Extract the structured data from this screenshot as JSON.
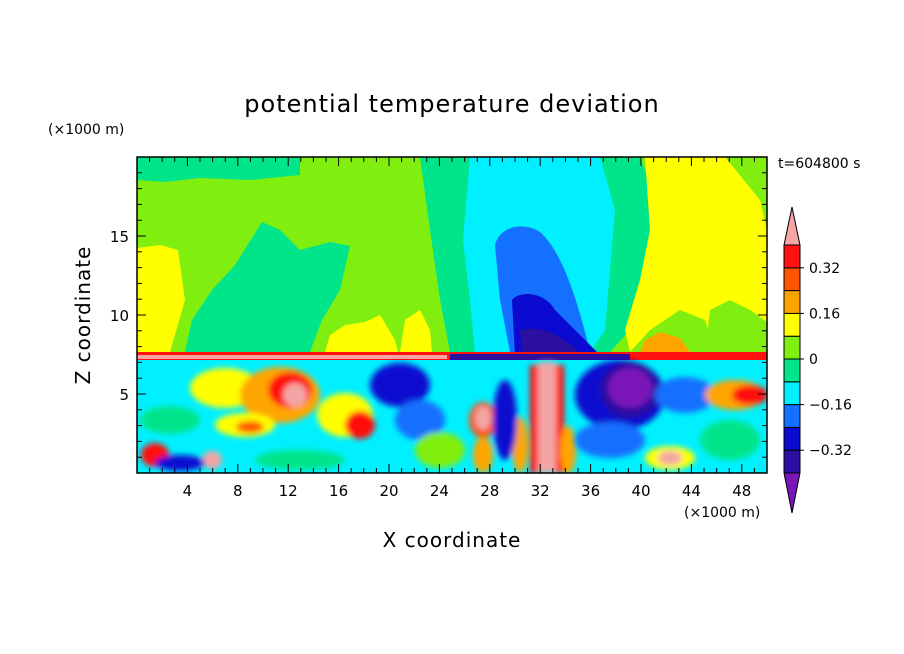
{
  "chart_data": {
    "type": "heatmap",
    "title": "potential temperature deviation",
    "xlabel": "X coordinate",
    "ylabel": "Z coordinate",
    "x_unit": "(×1000 m)",
    "y_unit": "(×1000 m)",
    "time_label": "t=604800 s",
    "xlim": [
      0,
      50
    ],
    "ylim": [
      0,
      20
    ],
    "x_ticks": [
      4,
      8,
      12,
      16,
      20,
      24,
      28,
      32,
      36,
      40,
      44,
      48
    ],
    "y_ticks": [
      5,
      10,
      15
    ],
    "colorbar": {
      "levels": [
        -0.4,
        -0.32,
        -0.24,
        -0.16,
        -0.08,
        0,
        0.08,
        0.16,
        0.24,
        0.32,
        0.4
      ],
      "labels": [
        -0.32,
        -0.16,
        0,
        0.16,
        0.32
      ],
      "label_text": [
        "−0.32",
        "−0.16",
        "0",
        "0.16",
        "0.32"
      ],
      "colors": [
        "#7a16b8",
        "#2a0fa0",
        "#0a0ad0",
        "#1470ff",
        "#00f0ff",
        "#00e58a",
        "#80ef10",
        "#ffff00",
        "#ffa500",
        "#ff5500",
        "#ff1111",
        "#f3a5a5"
      ],
      "extend": "both"
    }
  }
}
